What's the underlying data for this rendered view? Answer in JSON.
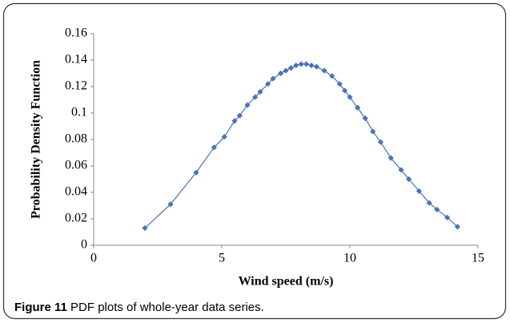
{
  "chart_data": {
    "type": "line",
    "xlabel": "Wind speed (m/s)",
    "ylabel": "Probability Density Function",
    "caption_label": "Figure 11",
    "caption": "PDF plots of whole-year data series.",
    "x": [
      2.0,
      3.0,
      4.0,
      4.7,
      5.1,
      5.5,
      5.7,
      6.0,
      6.3,
      6.5,
      6.8,
      7.0,
      7.3,
      7.5,
      7.7,
      7.9,
      8.1,
      8.3,
      8.5,
      8.7,
      9.0,
      9.3,
      9.6,
      9.8,
      10.0,
      10.3,
      10.6,
      10.9,
      11.2,
      11.6,
      12.0,
      12.3,
      12.7,
      13.1,
      13.4,
      13.8,
      14.2
    ],
    "series": [
      {
        "color": "#4a72b8",
        "values": [
          0.013,
          0.031,
          0.055,
          0.074,
          0.082,
          0.094,
          0.098,
          0.106,
          0.112,
          0.116,
          0.122,
          0.126,
          0.13,
          0.132,
          0.134,
          0.136,
          0.137,
          0.137,
          0.136,
          0.135,
          0.132,
          0.128,
          0.122,
          0.117,
          0.112,
          0.104,
          0.096,
          0.086,
          0.078,
          0.066,
          0.057,
          0.05,
          0.041,
          0.032,
          0.027,
          0.021,
          0.014
        ]
      }
    ],
    "xlim": [
      0,
      15
    ],
    "xticks": [
      0,
      5,
      10,
      15
    ],
    "ylim": [
      0,
      0.16
    ],
    "yticks": [
      0,
      0.02,
      0.04,
      0.06,
      0.08,
      0.1,
      0.12,
      0.14,
      0.16
    ],
    "grid": false
  }
}
